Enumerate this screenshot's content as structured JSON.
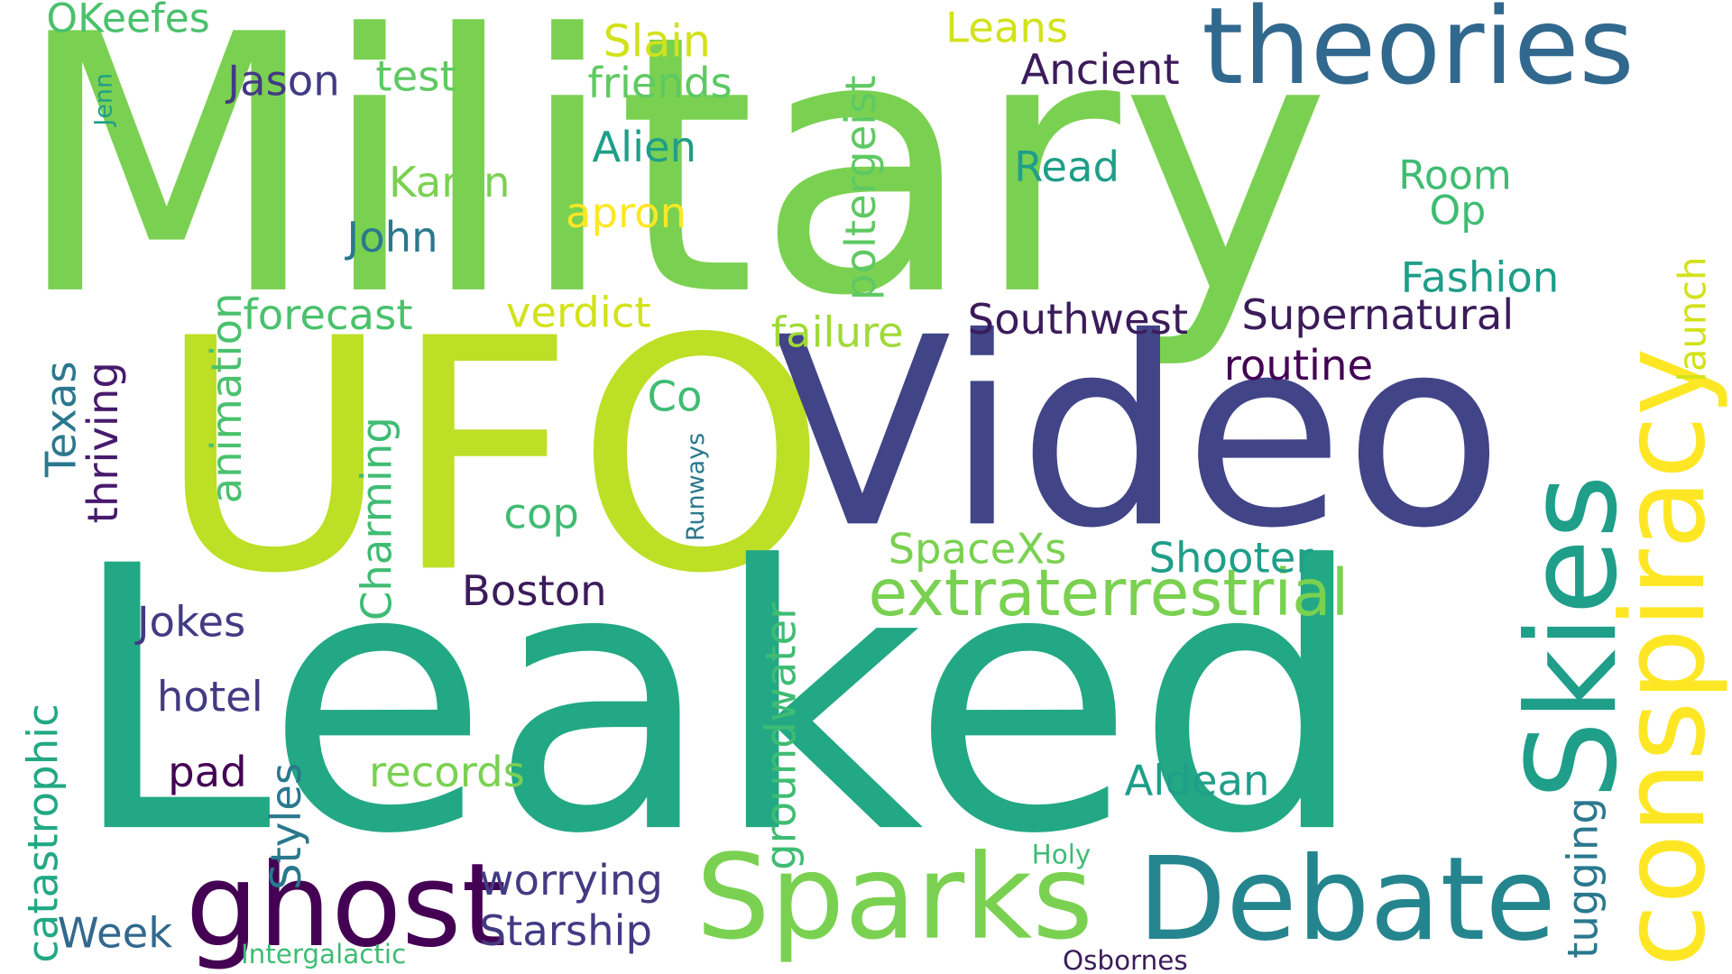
{
  "words": [
    {
      "id": "military",
      "text": "Military",
      "color": "#7ad151"
    },
    {
      "id": "ufo",
      "text": "UFO",
      "color": "#bddf26"
    },
    {
      "id": "video",
      "text": "Video",
      "color": "#414487"
    },
    {
      "id": "leaked",
      "text": "Leaked",
      "color": "#22a884"
    },
    {
      "id": "theories",
      "text": "theories",
      "color": "#31688e"
    },
    {
      "id": "skies",
      "text": "Skies",
      "color": "#1f9e89"
    },
    {
      "id": "conspiracy",
      "text": "conspiracy",
      "color": "#fde725"
    },
    {
      "id": "sparks",
      "text": "Sparks",
      "color": "#7ad151"
    },
    {
      "id": "debate",
      "text": "Debate",
      "color": "#25858e"
    },
    {
      "id": "ghost",
      "text": "ghost",
      "color": "#440154"
    },
    {
      "id": "extraterrestrial",
      "text": "extraterrestrial",
      "color": "#7ad151"
    },
    {
      "id": "okeefes",
      "text": "OKeefes",
      "color": "#4ac16d"
    },
    {
      "id": "slain",
      "text": "Slain",
      "color": "#d2e21b"
    },
    {
      "id": "leans",
      "text": "Leans",
      "color": "#d2e21b"
    },
    {
      "id": "ancient",
      "text": "Ancient",
      "color": "#3b1c5a"
    },
    {
      "id": "jason",
      "text": "Jason",
      "color": "#443a83"
    },
    {
      "id": "test",
      "text": "test",
      "color": "#5ec962"
    },
    {
      "id": "friends",
      "text": "friends",
      "color": "#5ec962"
    },
    {
      "id": "alien",
      "text": "Alien",
      "color": "#1f9e89"
    },
    {
      "id": "read",
      "text": "Read",
      "color": "#1f9e89"
    },
    {
      "id": "room",
      "text": "Room",
      "color": "#3fbc73"
    },
    {
      "id": "op",
      "text": "Op",
      "color": "#3fbc73"
    },
    {
      "id": "karen",
      "text": "Karen",
      "color": "#7ad151"
    },
    {
      "id": "apron",
      "text": "apron",
      "color": "#fde725"
    },
    {
      "id": "john",
      "text": "John",
      "color": "#2a788e"
    },
    {
      "id": "fashion",
      "text": "Fashion",
      "color": "#1f9e89"
    },
    {
      "id": "forecast",
      "text": "forecast",
      "color": "#4ac16d"
    },
    {
      "id": "verdict",
      "text": "verdict",
      "color": "#d2e21b"
    },
    {
      "id": "failure",
      "text": "failure",
      "color": "#a0da39"
    },
    {
      "id": "southwest",
      "text": "Southwest",
      "color": "#3b1c5a"
    },
    {
      "id": "supernatural",
      "text": "Supernatural",
      "color": "#3b1c5a"
    },
    {
      "id": "routine",
      "text": "routine",
      "color": "#440154"
    },
    {
      "id": "co",
      "text": "Co",
      "color": "#3fbc73"
    },
    {
      "id": "cop",
      "text": "cop",
      "color": "#3fbc73"
    },
    {
      "id": "spacexs",
      "text": "SpaceXs",
      "color": "#7ad151"
    },
    {
      "id": "shooter",
      "text": "Shooter",
      "color": "#1f9e89"
    },
    {
      "id": "boston",
      "text": "Boston",
      "color": "#3b1c5a"
    },
    {
      "id": "jokes",
      "text": "Jokes",
      "color": "#443a83"
    },
    {
      "id": "hotel",
      "text": "hotel",
      "color": "#443a83"
    },
    {
      "id": "pad",
      "text": "pad",
      "color": "#440154"
    },
    {
      "id": "records",
      "text": "records",
      "color": "#7ad151"
    },
    {
      "id": "aldean",
      "text": "Aldean",
      "color": "#1f9e89"
    },
    {
      "id": "worrying",
      "text": "worrying",
      "color": "#443a83"
    },
    {
      "id": "starship",
      "text": "Starship",
      "color": "#443a83"
    },
    {
      "id": "week",
      "text": "Week",
      "color": "#31688e"
    },
    {
      "id": "intergalactic",
      "text": "Intergalactic",
      "color": "#3fbc73"
    },
    {
      "id": "holy",
      "text": "Holy",
      "color": "#3fbc73"
    },
    {
      "id": "osbornes",
      "text": "Osbornes",
      "color": "#3b1c5a"
    },
    {
      "id": "jenn",
      "text": "Jenn",
      "color": "#1f9e89"
    },
    {
      "id": "poltergeist",
      "text": "poltergeist",
      "color": "#5ec962"
    },
    {
      "id": "launch",
      "text": "launch",
      "color": "#d2e21b"
    },
    {
      "id": "texas",
      "text": "Texas",
      "color": "#2a788e"
    },
    {
      "id": "thriving",
      "text": "thriving",
      "color": "#481a6c"
    },
    {
      "id": "animation",
      "text": "animation",
      "color": "#4ac16d"
    },
    {
      "id": "charming",
      "text": "Charming",
      "color": "#3fbc73"
    },
    {
      "id": "runways",
      "text": "Runways",
      "color": "#2a788e"
    },
    {
      "id": "catastrophic",
      "text": "catastrophic",
      "color": "#22a884"
    },
    {
      "id": "styles",
      "text": "Styles",
      "color": "#2a788e"
    },
    {
      "id": "groundwater",
      "text": "groundwater",
      "color": "#3fbc73"
    },
    {
      "id": "tugging",
      "text": "tugging",
      "color": "#2a788e"
    }
  ]
}
